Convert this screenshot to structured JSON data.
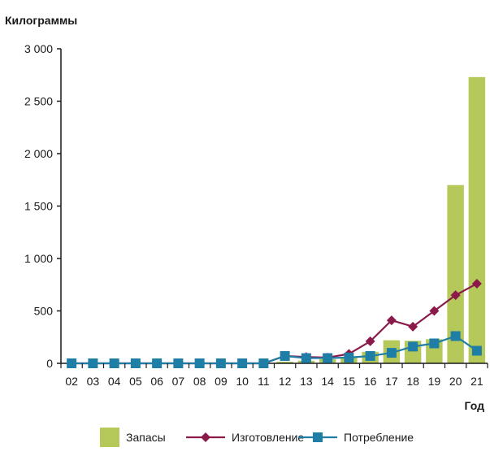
{
  "chart_data": {
    "type": "bar",
    "title": "",
    "ylabel": "Килограммы",
    "xlabel": "Год",
    "ylim": [
      0,
      3000
    ],
    "yticks": [
      0,
      500,
      1000,
      1500,
      2000,
      2500,
      3000
    ],
    "ytick_labels": [
      "0",
      "500",
      "1 000",
      "1 500",
      "2 000",
      "2 500",
      "3 000"
    ],
    "grid": false,
    "legend_position": "bottom",
    "categories": [
      "02",
      "03",
      "04",
      "05",
      "06",
      "07",
      "08",
      "09",
      "10",
      "11",
      "12",
      "13",
      "14",
      "15",
      "16",
      "17",
      "18",
      "19",
      "20",
      "21"
    ],
    "series": [
      {
        "name": "Запасы",
        "kind": "bar",
        "color": "#b5c95a",
        "values": [
          0,
          0,
          0,
          0,
          0,
          0,
          0,
          0,
          0,
          0,
          15,
          25,
          40,
          60,
          110,
          220,
          215,
          230,
          1700,
          2730
        ]
      },
      {
        "name": "Изготовление",
        "kind": "line",
        "marker": "diamond",
        "color": "#8b1a4a",
        "values": [
          0,
          0,
          0,
          0,
          0,
          0,
          0,
          0,
          0,
          0,
          70,
          60,
          55,
          90,
          210,
          410,
          350,
          500,
          650,
          760
        ]
      },
      {
        "name": "Потребление",
        "kind": "line",
        "marker": "square",
        "color": "#1f7ea6",
        "values": [
          0,
          0,
          0,
          0,
          0,
          0,
          0,
          0,
          0,
          0,
          70,
          50,
          50,
          55,
          70,
          100,
          160,
          190,
          260,
          120
        ]
      }
    ]
  }
}
